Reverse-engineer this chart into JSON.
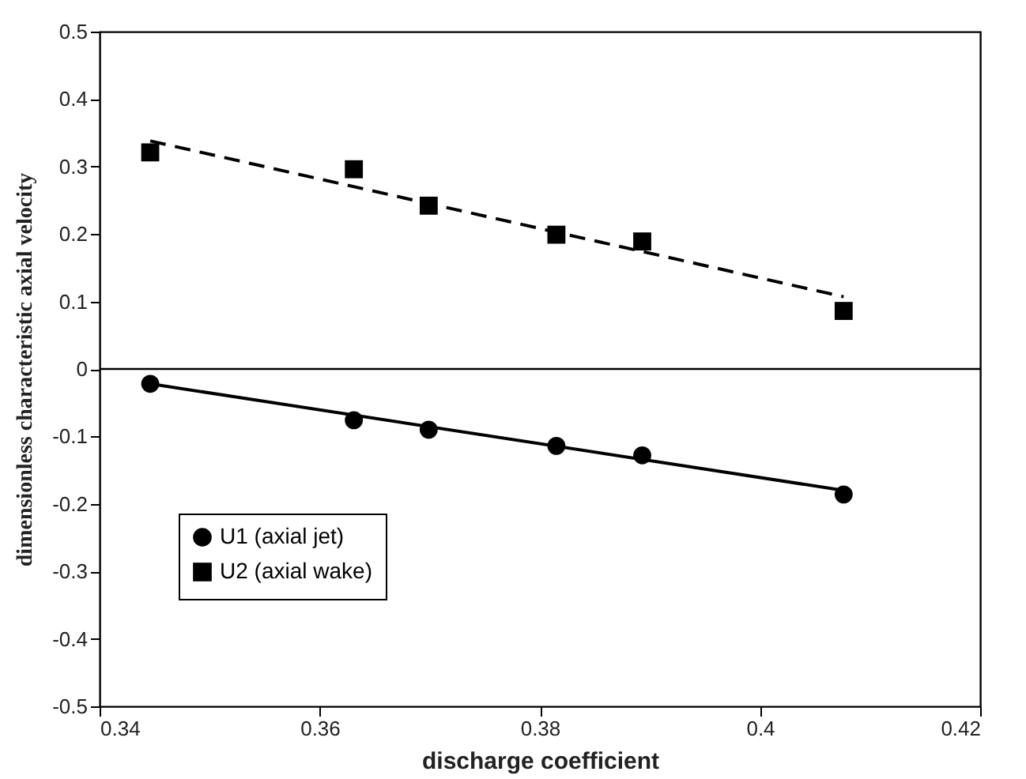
{
  "chart_data": {
    "type": "scatter",
    "xlabel": "discharge coefficient",
    "ylabel": "dimensionless characteristic axial velocity",
    "xlim": [
      0.34,
      0.42
    ],
    "ylim": [
      -0.5,
      0.5
    ],
    "xticks": [
      0.34,
      0.36,
      0.38,
      0.4,
      0.42
    ],
    "yticks": [
      -0.5,
      -0.4,
      -0.3,
      -0.2,
      -0.1,
      0,
      0.1,
      0.2,
      0.3,
      0.4,
      0.5
    ],
    "legend": "bottom left",
    "grid": false,
    "series": [
      {
        "name": "U1 (axial jet)",
        "marker": "circle",
        "color": "#000000",
        "x": [
          0.3446,
          0.3631,
          0.3699,
          0.3815,
          0.3893,
          0.4076
        ],
        "values": [
          -0.022,
          -0.076,
          -0.09,
          -0.114,
          -0.128,
          -0.186
        ]
      },
      {
        "name": "U2 (axial wake)",
        "marker": "square",
        "color": "#000000",
        "x": [
          0.3446,
          0.3631,
          0.3699,
          0.3815,
          0.3893,
          0.4076
        ],
        "values": [
          0.321,
          0.296,
          0.242,
          0.199,
          0.189,
          0.086
        ]
      },
      {
        "type": "line",
        "line_style": "solid",
        "color": "#000000",
        "x": [
          0.3446,
          0.4076
        ],
        "values": [
          -0.022,
          -0.18
        ]
      },
      {
        "type": "line",
        "line_style": "dashed",
        "color": "#000000",
        "x": [
          0.3446,
          0.4076
        ],
        "values": [
          0.338,
          0.107
        ]
      }
    ],
    "ref_lines": [
      {
        "axis": "y",
        "value": 0,
        "color": "#000000",
        "line_style": "solid"
      }
    ]
  }
}
